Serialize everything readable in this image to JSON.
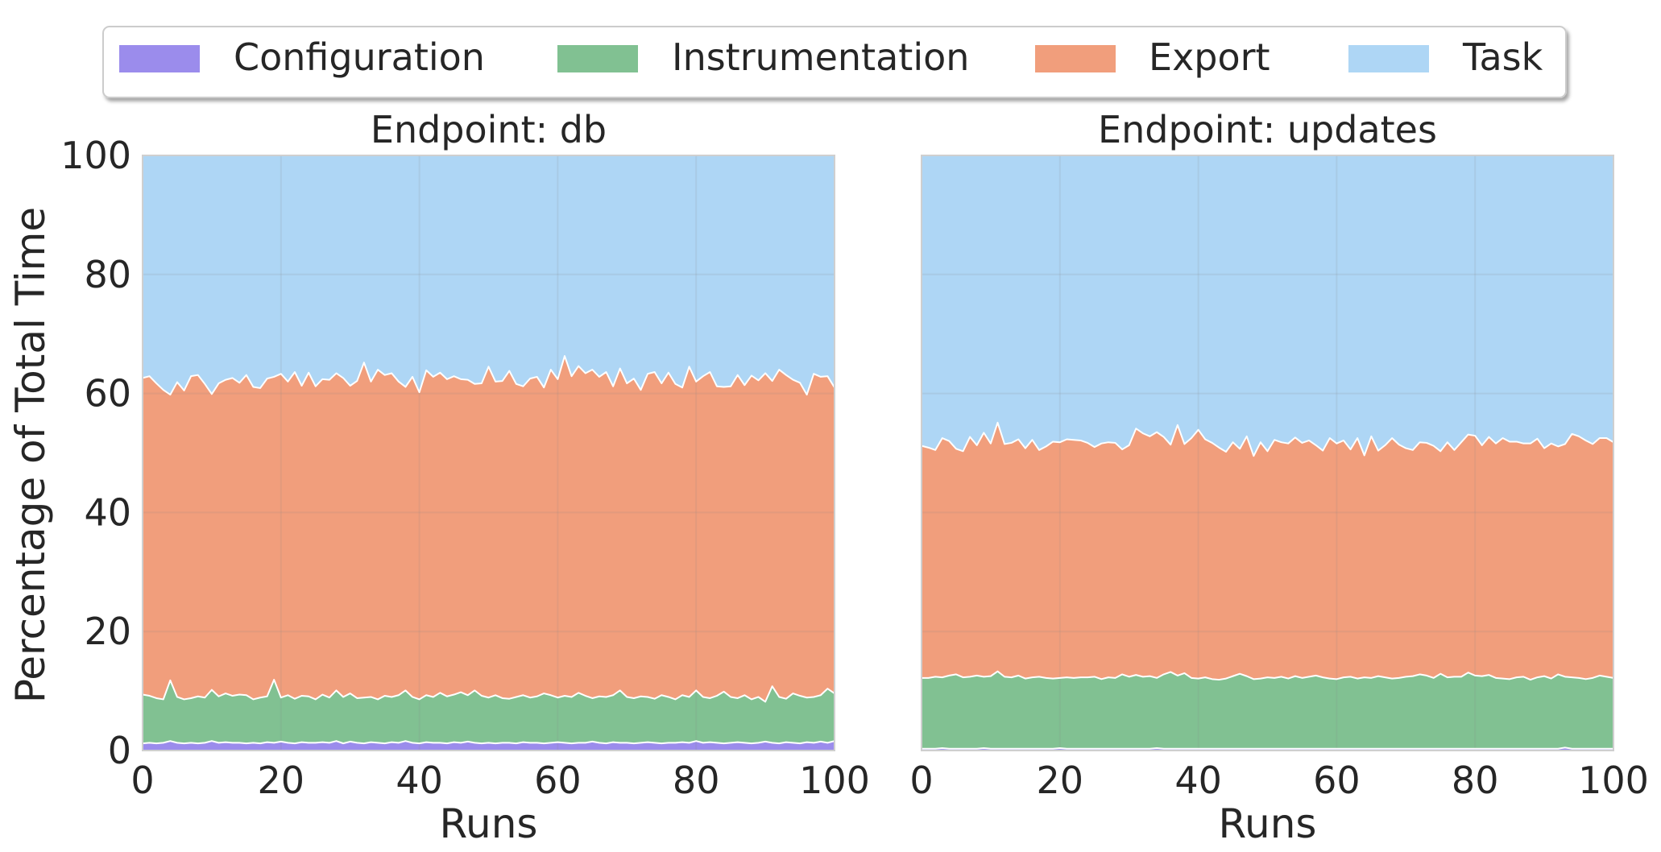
{
  "figure": {
    "ylabel": "Percentage of Total Time",
    "legend_placement": "top-center",
    "legend_entries": [
      "Configuration",
      "Instrumentation",
      "Export",
      "Task"
    ]
  },
  "colors": {
    "Configuration": "#9b8cec",
    "Instrumentation": "#81c192",
    "Export": "#f19e7c",
    "Task": "#aed6f5"
  },
  "chart_data": [
    {
      "type": "area",
      "stacked": true,
      "title": "Endpoint: db",
      "xlabel": "Runs",
      "ylabel": "Percentage of Total Time",
      "xlim": [
        0,
        100
      ],
      "ylim": [
        0,
        100
      ],
      "xticks": [
        0,
        20,
        40,
        60,
        80,
        100
      ],
      "yticks": [
        0,
        20,
        40,
        60,
        80,
        100
      ],
      "grid": true,
      "series": [
        {
          "name": "Configuration",
          "mean": 1.3,
          "min": 0.9,
          "max": 2.1
        },
        {
          "name": "Instrumentation",
          "mean": 8.0,
          "min": 6.8,
          "max": 10.5
        },
        {
          "name": "Export",
          "mean": 53.0,
          "min": 50.5,
          "max": 56.0
        },
        {
          "name": "Task",
          "mean": 37.7,
          "min": 33.5,
          "max": 40.5
        }
      ],
      "top_boundaries": {
        "Configuration": [
          1.2,
          1.3,
          1.2,
          1.3,
          1.6,
          1.3,
          1.2,
          1.3,
          1.2,
          1.3,
          1.6,
          1.3,
          1.4,
          1.3,
          1.3,
          1.2,
          1.3,
          1.2,
          1.4,
          1.3,
          1.5,
          1.3,
          1.2,
          1.4,
          1.3,
          1.3,
          1.4,
          1.3,
          1.6,
          1.2,
          1.5,
          1.3,
          1.2,
          1.4,
          1.3,
          1.2,
          1.4,
          1.3,
          1.6,
          1.3,
          1.2,
          1.4,
          1.3,
          1.3,
          1.2,
          1.4,
          1.3,
          1.5,
          1.3,
          1.2,
          1.3,
          1.2,
          1.3,
          1.3,
          1.2,
          1.4,
          1.3,
          1.3,
          1.2,
          1.3,
          1.4,
          1.3,
          1.2,
          1.3,
          1.3,
          1.5,
          1.3,
          1.2,
          1.4,
          1.3,
          1.3,
          1.2,
          1.3,
          1.4,
          1.3,
          1.2,
          1.3,
          1.3,
          1.4,
          1.3,
          1.6,
          1.3,
          1.4,
          1.3,
          1.2,
          1.3,
          1.4,
          1.3,
          1.2,
          1.3,
          1.5,
          1.3,
          1.2,
          1.4,
          1.3,
          1.2,
          1.4,
          1.3,
          1.5,
          1.3,
          1.6
        ],
        "Instrumentation": [
          9.4,
          9.2,
          8.8,
          8.6,
          11.8,
          9.0,
          8.6,
          8.8,
          9.1,
          8.9,
          10.2,
          9.1,
          9.6,
          9.2,
          9.4,
          9.3,
          8.6,
          8.9,
          9.1,
          11.9,
          8.9,
          9.3,
          8.7,
          9.2,
          9.1,
          8.6,
          9.4,
          8.9,
          10.1,
          9.0,
          9.6,
          8.8,
          8.9,
          9.0,
          8.6,
          9.2,
          9.0,
          9.3,
          10.1,
          9.0,
          8.6,
          9.3,
          9.0,
          9.7,
          9.1,
          9.4,
          9.8,
          9.3,
          10.1,
          9.2,
          8.9,
          9.3,
          8.8,
          8.7,
          9.0,
          9.3,
          8.9,
          9.1,
          9.6,
          9.3,
          8.9,
          9.2,
          9.0,
          9.7,
          9.2,
          8.8,
          9.1,
          9.0,
          9.3,
          10.1,
          9.0,
          8.8,
          9.1,
          9.0,
          8.7,
          9.3,
          9.0,
          8.6,
          9.3,
          9.0,
          10.1,
          9.0,
          8.8,
          9.2,
          9.9,
          9.0,
          8.8,
          9.3,
          8.6,
          9.0,
          8.2,
          10.8,
          9.0,
          8.7,
          9.6,
          9.2,
          8.9,
          9.0,
          9.3,
          10.4,
          9.6
        ],
        "Export": [
          62.6,
          62.9,
          61.7,
          60.6,
          59.8,
          61.9,
          60.5,
          62.9,
          63.1,
          61.6,
          59.9,
          61.7,
          62.3,
          62.6,
          61.8,
          63.1,
          61.1,
          60.9,
          62.5,
          62.8,
          63.3,
          62.0,
          63.6,
          61.3,
          63.5,
          61.2,
          62.4,
          62.3,
          63.4,
          62.6,
          61.3,
          62.1,
          65.2,
          62.0,
          64.0,
          63.1,
          63.4,
          62.0,
          61.1,
          62.8,
          60.2,
          63.9,
          62.8,
          63.5,
          62.4,
          62.9,
          62.4,
          62.3,
          61.6,
          61.7,
          64.5,
          62.0,
          62.1,
          63.8,
          61.6,
          61.2,
          62.5,
          62.8,
          61.0,
          64.0,
          62.4,
          66.3,
          62.9,
          64.6,
          63.4,
          64.0,
          62.8,
          63.6,
          61.2,
          64.2,
          61.7,
          62.5,
          60.6,
          63.3,
          63.6,
          61.7,
          63.5,
          61.6,
          61.0,
          64.5,
          62.0,
          62.9,
          63.6,
          61.2,
          61.1,
          61.2,
          63.1,
          61.4,
          63.0,
          62.2,
          63.4,
          62.1,
          64.0,
          63.1,
          62.3,
          61.8,
          59.8,
          63.3,
          62.8,
          62.9,
          61.0
        ],
        "Task": [
          100,
          100,
          100,
          100,
          100,
          100,
          100,
          100,
          100,
          100,
          100,
          100,
          100,
          100,
          100,
          100,
          100,
          100,
          100,
          100,
          100,
          100,
          100,
          100,
          100,
          100,
          100,
          100,
          100,
          100,
          100,
          100,
          100,
          100,
          100,
          100,
          100,
          100,
          100,
          100,
          100,
          100,
          100,
          100,
          100,
          100,
          100,
          100,
          100,
          100,
          100,
          100,
          100,
          100,
          100,
          100,
          100,
          100,
          100,
          100,
          100,
          100,
          100,
          100,
          100,
          100,
          100,
          100,
          100,
          100,
          100,
          100,
          100,
          100,
          100,
          100,
          100,
          100,
          100,
          100,
          100,
          100,
          100,
          100,
          100,
          100,
          100,
          100,
          100,
          100,
          100,
          100,
          100,
          100,
          100,
          100,
          100,
          100,
          100,
          100,
          100
        ]
      }
    },
    {
      "type": "area",
      "stacked": true,
      "title": "Endpoint: updates",
      "xlabel": "Runs",
      "ylabel": "",
      "xlim": [
        0,
        100
      ],
      "ylim": [
        0,
        100
      ],
      "xticks": [
        0,
        20,
        40,
        60,
        80,
        100
      ],
      "yticks": [
        0,
        20,
        40,
        60,
        80,
        100
      ],
      "grid": true,
      "series": [
        {
          "name": "Configuration",
          "mean": 0.3,
          "min": 0.2,
          "max": 0.5
        },
        {
          "name": "Instrumentation",
          "mean": 12.0,
          "min": 11.5,
          "max": 13.2
        },
        {
          "name": "Export",
          "mean": 39.5,
          "min": 36.5,
          "max": 42.5
        },
        {
          "name": "Task",
          "mean": 48.2,
          "min": 45.0,
          "max": 50.5
        }
      ],
      "top_boundaries": {
        "Configuration": [
          0.3,
          0.3,
          0.3,
          0.4,
          0.3,
          0.3,
          0.3,
          0.3,
          0.3,
          0.4,
          0.3,
          0.3,
          0.3,
          0.3,
          0.3,
          0.3,
          0.3,
          0.3,
          0.3,
          0.3,
          0.4,
          0.3,
          0.3,
          0.3,
          0.3,
          0.3,
          0.3,
          0.3,
          0.3,
          0.3,
          0.3,
          0.3,
          0.3,
          0.3,
          0.4,
          0.3,
          0.3,
          0.3,
          0.3,
          0.3,
          0.3,
          0.3,
          0.3,
          0.3,
          0.3,
          0.3,
          0.3,
          0.3,
          0.3,
          0.3,
          0.3,
          0.3,
          0.3,
          0.3,
          0.3,
          0.3,
          0.3,
          0.3,
          0.3,
          0.3,
          0.3,
          0.3,
          0.3,
          0.3,
          0.3,
          0.3,
          0.3,
          0.3,
          0.3,
          0.3,
          0.3,
          0.3,
          0.3,
          0.3,
          0.3,
          0.3,
          0.3,
          0.3,
          0.3,
          0.3,
          0.3,
          0.3,
          0.3,
          0.3,
          0.3,
          0.3,
          0.3,
          0.3,
          0.3,
          0.3,
          0.3,
          0.3,
          0.3,
          0.5,
          0.3,
          0.3,
          0.3,
          0.3,
          0.3,
          0.3,
          0.3
        ],
        "Instrumentation": [
          12.2,
          12.2,
          12.4,
          12.3,
          12.6,
          12.8,
          12.3,
          12.4,
          12.6,
          12.4,
          12.5,
          13.3,
          12.4,
          12.3,
          12.6,
          12.1,
          12.3,
          12.4,
          12.2,
          12.1,
          12.2,
          12.3,
          12.2,
          12.3,
          12.3,
          12.4,
          12.0,
          12.3,
          12.2,
          12.8,
          12.4,
          12.7,
          12.4,
          12.5,
          12.2,
          12.8,
          13.2,
          12.6,
          13.0,
          12.2,
          12.1,
          12.3,
          12.0,
          11.9,
          12.1,
          12.5,
          12.9,
          12.5,
          12.0,
          12.1,
          12.3,
          12.2,
          12.4,
          12.1,
          12.5,
          12.2,
          12.4,
          12.6,
          12.3,
          12.1,
          12.0,
          12.3,
          12.4,
          12.1,
          12.3,
          12.2,
          12.5,
          12.3,
          12.1,
          12.2,
          12.4,
          12.5,
          12.8,
          12.6,
          12.2,
          12.9,
          12.3,
          12.4,
          12.4,
          13.1,
          12.6,
          12.5,
          12.7,
          12.2,
          12.1,
          12.0,
          12.3,
          12.4,
          11.9,
          12.3,
          12.5,
          12.1,
          12.8,
          12.4,
          12.3,
          12.2,
          12.0,
          12.2,
          12.6,
          12.4,
          12.2
        ],
        "Export": [
          51.2,
          50.9,
          50.5,
          52.5,
          52.0,
          50.7,
          50.3,
          52.7,
          51.3,
          53.4,
          51.6,
          55.1,
          51.5,
          51.7,
          52.3,
          50.8,
          52.2,
          50.5,
          51.1,
          51.9,
          51.8,
          52.3,
          52.2,
          52.1,
          51.7,
          51.0,
          51.6,
          51.8,
          51.7,
          50.6,
          51.3,
          54.1,
          53.3,
          52.8,
          53.5,
          52.7,
          51.4,
          54.7,
          51.5,
          52.5,
          53.9,
          52.3,
          51.7,
          50.9,
          50.2,
          51.8,
          50.7,
          52.8,
          49.5,
          51.8,
          50.3,
          52.2,
          51.8,
          51.6,
          52.6,
          51.7,
          52.1,
          51.3,
          50.4,
          52.5,
          51.6,
          52.1,
          50.6,
          52.5,
          49.6,
          52.8,
          50.4,
          51.3,
          52.5,
          51.4,
          50.8,
          50.5,
          51.8,
          51.7,
          51.2,
          50.3,
          51.8,
          50.5,
          51.8,
          53.1,
          52.9,
          51.3,
          52.7,
          51.6,
          52.5,
          51.9,
          51.9,
          51.6,
          51.6,
          52.4,
          50.8,
          51.6,
          51.1,
          51.5,
          53.2,
          52.8,
          52.1,
          51.5,
          52.5,
          52.5,
          51.8
        ],
        "Task": [
          100,
          100,
          100,
          100,
          100,
          100,
          100,
          100,
          100,
          100,
          100,
          100,
          100,
          100,
          100,
          100,
          100,
          100,
          100,
          100,
          100,
          100,
          100,
          100,
          100,
          100,
          100,
          100,
          100,
          100,
          100,
          100,
          100,
          100,
          100,
          100,
          100,
          100,
          100,
          100,
          100,
          100,
          100,
          100,
          100,
          100,
          100,
          100,
          100,
          100,
          100,
          100,
          100,
          100,
          100,
          100,
          100,
          100,
          100,
          100,
          100,
          100,
          100,
          100,
          100,
          100,
          100,
          100,
          100,
          100,
          100,
          100,
          100,
          100,
          100,
          100,
          100,
          100,
          100,
          100,
          100,
          100,
          100,
          100,
          100,
          100,
          100,
          100,
          100,
          100,
          100,
          100,
          100,
          100,
          100,
          100,
          100,
          100,
          100,
          100,
          100
        ]
      }
    }
  ]
}
